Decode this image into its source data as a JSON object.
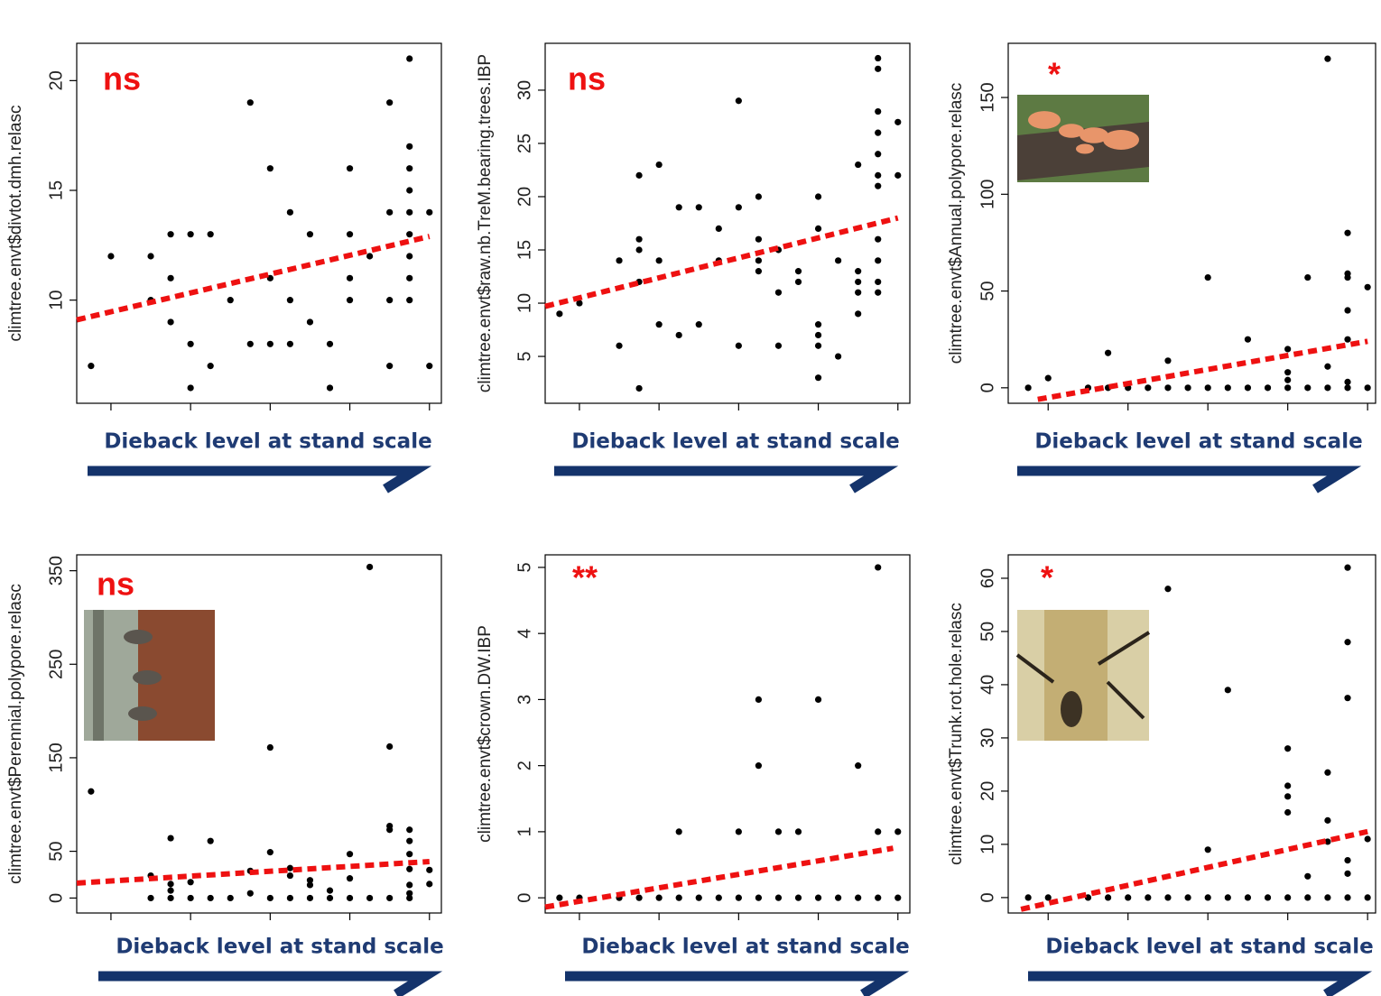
{
  "chart_data": [
    {
      "type": "scatter",
      "ylabel": "climtree.envt$divtot.dmh.relasc",
      "xlabel": "Dieback level at stand scale",
      "annotation": "ns",
      "annotation_color": "#ee1111",
      "color": "#000000",
      "xlim": [
        0.57,
        5.15
      ],
      "xticks": [
        1,
        2,
        3,
        4,
        5
      ],
      "ylim": [
        5.3,
        21.7
      ],
      "yticks": [
        10,
        15,
        20
      ],
      "x": [
        0.75,
        1,
        1.5,
        1.5,
        1.75,
        1.75,
        1.75,
        2,
        2,
        2,
        2.25,
        2.25,
        2.5,
        2.75,
        2.75,
        3,
        3,
        3,
        3.25,
        3.25,
        3.25,
        3.5,
        3.5,
        3.75,
        3.75,
        4,
        4,
        4,
        4,
        4.25,
        4.5,
        4.5,
        4.5,
        4.5,
        4.75,
        4.75,
        4.75,
        4.75,
        4.75,
        4.75,
        4.75,
        4.75,
        4.75,
        5,
        5
      ],
      "y": [
        7,
        12,
        12,
        10,
        13,
        11,
        9,
        13,
        8,
        6,
        13,
        7,
        10,
        19,
        8,
        16,
        11,
        8,
        14,
        10,
        8,
        13,
        9,
        8,
        6,
        16,
        13,
        11,
        10,
        12,
        19,
        14,
        10,
        7,
        21,
        17,
        16,
        15,
        14,
        13,
        12,
        11,
        10,
        14,
        7
      ],
      "trend": {
        "x": [
          0.57,
          5
        ],
        "y": [
          9.1,
          12.9
        ],
        "color": "#ee1111"
      }
    },
    {
      "type": "scatter",
      "ylabel": "climtree.envt$raw.nb.TreM.bearing.trees.IBP",
      "xlabel": "Dieback level at stand scale",
      "annotation": "ns",
      "annotation_color": "#ee1111",
      "color": "#000000",
      "xlim": [
        0.57,
        5.15
      ],
      "xticks": [
        1,
        2,
        3,
        4,
        5
      ],
      "ylim": [
        0.6,
        34.4
      ],
      "yticks": [
        5,
        10,
        15,
        20,
        25,
        30
      ],
      "x": [
        0.75,
        1,
        1.5,
        1.5,
        1.75,
        1.75,
        1.75,
        1.75,
        1.75,
        2,
        2,
        2,
        2.25,
        2.25,
        2.5,
        2.5,
        2.75,
        2.75,
        3,
        3,
        3,
        3.25,
        3.25,
        3.25,
        3.25,
        3.5,
        3.5,
        3.5,
        3.75,
        3.75,
        4,
        4,
        4,
        4,
        4,
        4,
        4.25,
        4.25,
        4.5,
        4.5,
        4.5,
        4.5,
        4.5,
        4.75,
        4.75,
        4.75,
        4.75,
        4.75,
        4.75,
        4.75,
        4.75,
        4.75,
        4.75,
        4.75,
        5,
        5
      ],
      "y": [
        9,
        10,
        6,
        14,
        22,
        16,
        15,
        12,
        2,
        23,
        14,
        8,
        19,
        7,
        19,
        8,
        17,
        14,
        29,
        19,
        6,
        20,
        16,
        14,
        13,
        15,
        11,
        6,
        13,
        12,
        20,
        17,
        8,
        7,
        6,
        3,
        14,
        5,
        23,
        13,
        12,
        11,
        9,
        33,
        32,
        28,
        26,
        24,
        22,
        21,
        16,
        14,
        12,
        11,
        27,
        22
      ],
      "trend": {
        "x": [
          0.57,
          5
        ],
        "y": [
          9.7,
          18
        ],
        "color": "#ee1111"
      }
    },
    {
      "type": "scatter",
      "ylabel": "climtree.envt$Annual.polypore.relasc",
      "xlabel": "Dieback level at stand scale",
      "annotation": "*",
      "annotation_color": "#ee1111",
      "color": "#000000",
      "xlim": [
        0.5,
        5.1
      ],
      "xticks": [
        1,
        2,
        3,
        4,
        5
      ],
      "ylim": [
        -8,
        178
      ],
      "yticks": [
        0,
        50,
        100,
        150
      ],
      "x": [
        0.75,
        1,
        1.5,
        1.75,
        1.75,
        2,
        2.25,
        2.5,
        2.5,
        2.75,
        3,
        3,
        3.25,
        3.5,
        3.5,
        3.75,
        4,
        4,
        4,
        4,
        4.25,
        4.25,
        4.5,
        4.5,
        4.5,
        4.75,
        4.75,
        4.75,
        4.75,
        4.75,
        4.75,
        4.75,
        5,
        5
      ],
      "y": [
        0,
        5,
        0,
        18,
        0,
        0,
        0,
        14,
        0,
        0,
        57,
        0,
        0,
        25,
        0,
        0,
        20,
        8,
        4,
        0,
        57,
        0,
        170,
        11,
        0,
        80,
        59,
        57,
        40,
        25,
        3,
        0,
        52,
        0
      ],
      "trend": {
        "x": [
          0.87,
          5
        ],
        "y": [
          -6,
          24
        ],
        "color": "#ee1111"
      }
    },
    {
      "type": "scatter",
      "ylabel": "climtree.envt$Perennial.polypore.relasc",
      "xlabel": "Dieback level at stand scale",
      "annotation": "ns",
      "annotation_color": "#ee1111",
      "color": "#000000",
      "xlim": [
        0.57,
        5.15
      ],
      "xticks": [
        1,
        2,
        3,
        4,
        5
      ],
      "ylim": [
        -16,
        367
      ],
      "yticks": [
        0,
        50,
        150,
        250,
        350
      ],
      "x": [
        0.75,
        1.5,
        1.5,
        1.75,
        1.75,
        1.75,
        1.75,
        2,
        2,
        2.25,
        2.25,
        2.5,
        2.75,
        2.75,
        3,
        3,
        3,
        3.25,
        3.25,
        3.25,
        3.5,
        3.5,
        3.5,
        3.75,
        3.75,
        4,
        4,
        4,
        4.25,
        4.25,
        4.5,
        4.5,
        4.5,
        4.5,
        4.75,
        4.75,
        4.75,
        4.75,
        4.75,
        4.75,
        4.75,
        5,
        5
      ],
      "y": [
        114,
        24,
        0,
        64,
        15,
        8,
        0,
        17,
        0,
        61,
        0,
        0,
        5,
        29,
        161,
        49,
        0,
        32,
        24,
        0,
        19,
        14,
        0,
        8,
        0,
        47,
        21,
        0,
        354,
        0,
        162,
        77,
        73,
        0,
        73,
        61,
        47,
        31,
        14,
        5,
        0,
        30,
        15
      ],
      "trend": {
        "x": [
          0.57,
          5
        ],
        "y": [
          16,
          39
        ],
        "color": "#ee1111"
      }
    },
    {
      "type": "scatter",
      "ylabel": "climtree.envt$crown.DW.IBP",
      "xlabel": "Dieback level at stand scale",
      "annotation": "**",
      "annotation_color": "#ee1111",
      "color": "#000000",
      "xlim": [
        0.57,
        5.15
      ],
      "xticks": [
        1,
        2,
        3,
        4,
        5
      ],
      "ylim": [
        -0.23,
        5.19
      ],
      "yticks": [
        0,
        1,
        2,
        3,
        4,
        5
      ],
      "x": [
        0.75,
        1,
        1.5,
        1.75,
        2,
        2.25,
        2.25,
        2.5,
        2.75,
        3,
        3,
        3.25,
        3.25,
        3.25,
        3.5,
        3.5,
        3.75,
        3.75,
        4,
        4,
        4.25,
        4.5,
        4.5,
        4.75,
        4.75,
        4.75,
        5,
        5
      ],
      "y": [
        0,
        0,
        0,
        0,
        0,
        1,
        0,
        0,
        0,
        1,
        0,
        3,
        2,
        0,
        1,
        0,
        1,
        0,
        3,
        0,
        0,
        2,
        0,
        5,
        1,
        0,
        1,
        0
      ],
      "trend": {
        "x": [
          0.57,
          4.94
        ],
        "y": [
          -0.14,
          0.75
        ],
        "color": "#ee1111"
      }
    },
    {
      "type": "scatter",
      "ylabel": "climtree.envt$Trunk.rot.hole.relasc",
      "xlabel": "Dieback level at stand scale",
      "annotation": "*",
      "annotation_color": "#ee1111",
      "color": "#000000",
      "xlim": [
        0.5,
        5.1
      ],
      "xticks": [
        1,
        2,
        3,
        4,
        5
      ],
      "ylim": [
        -2.9,
        64.4
      ],
      "yticks": [
        0,
        10,
        20,
        30,
        40,
        50,
        60
      ],
      "x": [
        0.75,
        1,
        1.5,
        1.75,
        2,
        2.25,
        2.5,
        2.5,
        2.75,
        3,
        3,
        3.25,
        3.25,
        3.5,
        3.75,
        4,
        4,
        4,
        4,
        4,
        4.25,
        4.25,
        4.5,
        4.5,
        4.5,
        4.5,
        4.75,
        4.75,
        4.75,
        4.75,
        4.75,
        4.75,
        5,
        5
      ],
      "y": [
        0,
        0,
        0,
        0,
        0,
        0,
        58,
        0,
        0,
        9,
        0,
        39,
        0,
        0,
        0,
        28,
        21,
        19,
        16,
        0,
        4,
        0,
        23.5,
        14.5,
        10.5,
        0,
        62,
        48,
        37.5,
        7,
        4.5,
        0,
        11,
        0
      ],
      "trend": {
        "x": [
          0.66,
          5
        ],
        "y": [
          -2.2,
          12.4
        ],
        "color": "#ee1111"
      }
    }
  ]
}
